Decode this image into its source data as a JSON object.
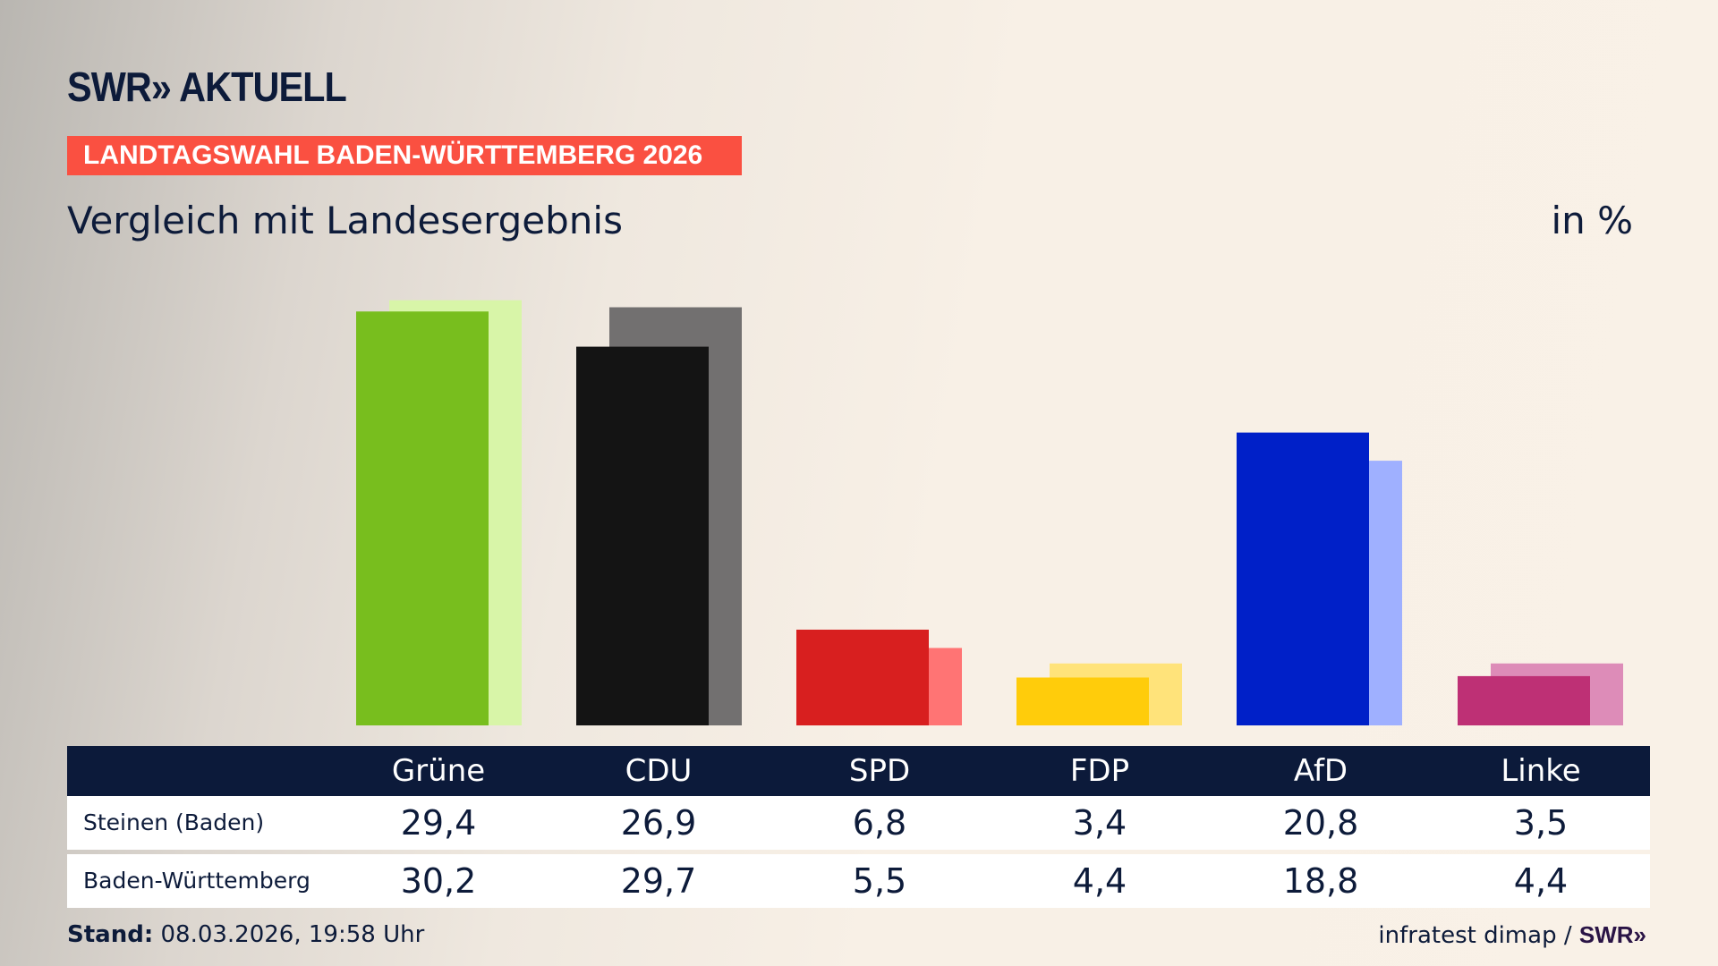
{
  "header": {
    "logo": "SWR» AKTUELL",
    "kicker": "LANDTAGSWAHL BADEN-WÜRTTEMBERG 2026",
    "subtitle": "Vergleich mit Landesergebnis",
    "unit": "in %"
  },
  "chart_data": {
    "type": "bar",
    "categories": [
      "Grüne",
      "CDU",
      "SPD",
      "FDP",
      "AfD",
      "Linke"
    ],
    "series": [
      {
        "name": "Steinen (Baden)",
        "values": [
          29.4,
          26.9,
          6.8,
          3.4,
          20.8,
          3.5
        ],
        "colors": [
          "#78be1e",
          "#141414",
          "#d81f1f",
          "#ffcc0b",
          "#0020c8",
          "#be3075"
        ]
      },
      {
        "name": "Baden-Württemberg",
        "values": [
          30.2,
          29.7,
          5.5,
          4.4,
          18.8,
          4.4
        ],
        "colors": [
          "#d8f5a8",
          "#727070",
          "#ff7474",
          "#ffe37a",
          "#9fb0ff",
          "#dd8cb8"
        ]
      }
    ],
    "ylim": [
      0,
      30.2
    ],
    "grid": false,
    "legend": "table-below"
  },
  "table": {
    "rows": [
      {
        "label": "Steinen (Baden)",
        "values": [
          "29,4",
          "26,9",
          "6,8",
          "3,4",
          "20,8",
          "3,5"
        ]
      },
      {
        "label": "Baden-Württemberg",
        "values": [
          "30,2",
          "29,7",
          "5,5",
          "4,4",
          "18,8",
          "4,4"
        ]
      }
    ]
  },
  "footer": {
    "stand_label": "Stand:",
    "stand_value": "08.03.2026, 19:58 Uhr",
    "source": "infratest dimap /",
    "source_logo": "SWR»"
  }
}
